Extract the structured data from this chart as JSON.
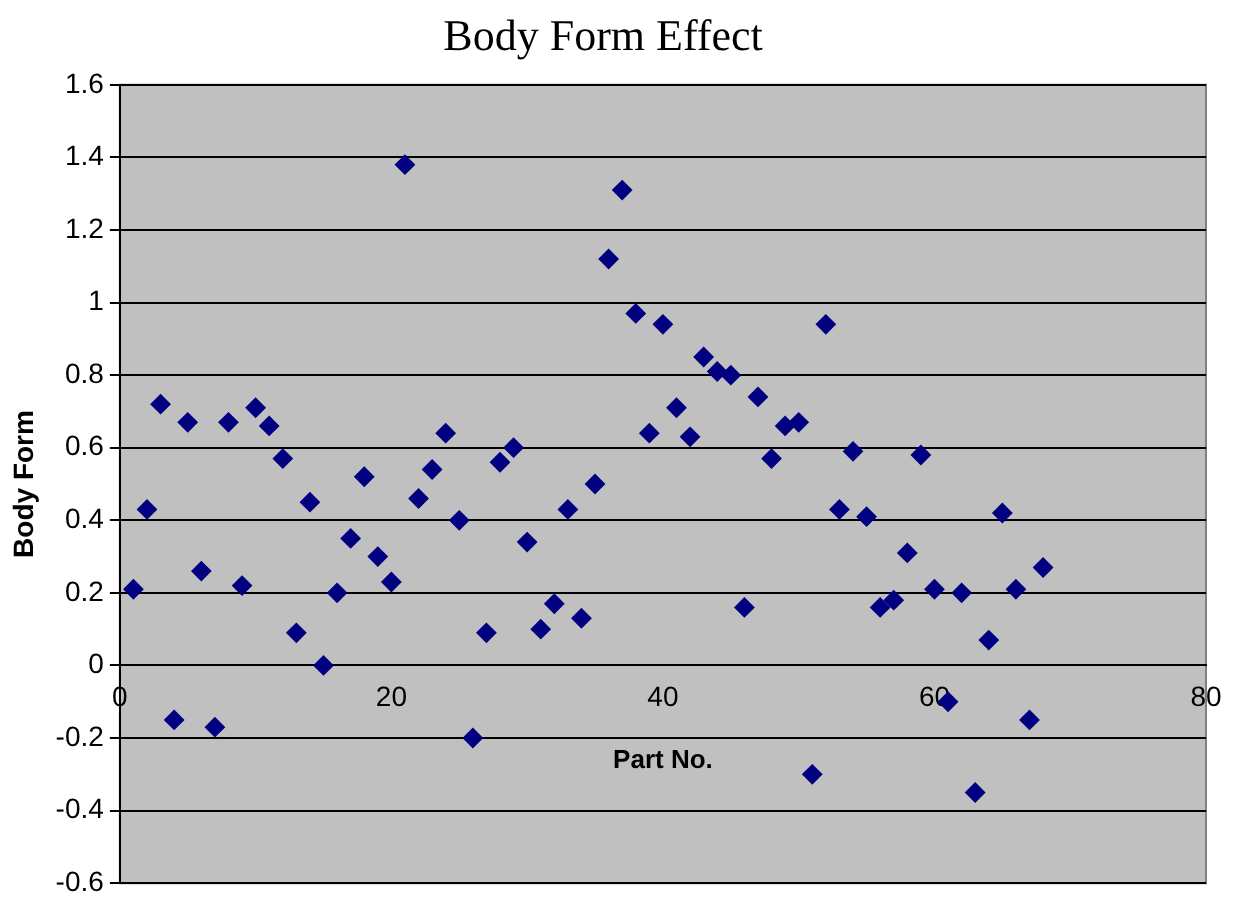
{
  "chart_data": {
    "type": "scatter",
    "title": "Body Form Effect",
    "xlabel": "Part No.",
    "ylabel": "Body Form",
    "x": [
      1,
      2,
      3,
      4,
      5,
      6,
      7,
      8,
      9,
      10,
      11,
      12,
      13,
      14,
      15,
      16,
      17,
      18,
      19,
      20,
      21,
      22,
      23,
      24,
      25,
      26,
      27,
      28,
      29,
      30,
      31,
      32,
      33,
      34,
      35,
      36,
      37,
      38,
      39,
      40,
      41,
      42,
      43,
      44,
      45,
      46,
      47,
      48,
      49,
      50,
      51,
      52,
      53,
      54,
      55,
      56,
      57,
      58,
      59,
      60,
      61,
      62,
      63,
      64,
      65,
      66,
      67,
      68
    ],
    "series": [
      {
        "color": "#000080",
        "values": [
          0.21,
          0.43,
          0.72,
          -0.15,
          0.67,
          0.26,
          -0.17,
          0.67,
          0.22,
          0.71,
          0.66,
          0.57,
          0.09,
          0.45,
          0.0,
          0.2,
          0.35,
          0.52,
          0.3,
          0.23,
          1.38,
          0.46,
          0.54,
          0.64,
          0.4,
          -0.2,
          0.09,
          0.56,
          0.6,
          0.34,
          0.1,
          0.17,
          0.43,
          0.13,
          0.5,
          1.12,
          1.31,
          0.97,
          0.64,
          0.94,
          0.71,
          0.63,
          0.85,
          0.81,
          0.8,
          0.16,
          0.74,
          0.57,
          0.66,
          0.67,
          -0.3,
          0.94,
          0.43,
          0.59,
          0.41,
          0.16,
          0.18,
          0.31,
          0.58,
          0.21,
          -0.1,
          0.2,
          -0.35,
          0.07,
          0.42,
          0.21,
          -0.15,
          0.27
        ]
      }
    ],
    "xlim": [
      0,
      80
    ],
    "xticks": [
      0,
      20,
      40,
      60,
      80
    ],
    "ylim": [
      -0.6,
      1.6
    ],
    "yticks": [
      -0.6,
      -0.4,
      -0.2,
      0,
      0.2,
      0.4,
      0.6,
      0.8,
      1,
      1.2,
      1.4,
      1.6
    ],
    "grid": "y",
    "legend": false,
    "marker": "diamond"
  }
}
